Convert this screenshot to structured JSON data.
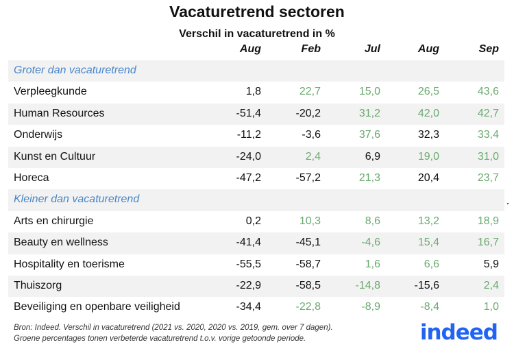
{
  "chart_data": {
    "type": "table",
    "title": "Vacaturetrend sectoren",
    "subtitle": "Verschil in vacaturetrend in %",
    "columns": [
      "Aug",
      "Feb",
      "Jul",
      "Aug",
      "Sep"
    ],
    "groups": [
      {
        "name": "Groter dan vacaturetrend",
        "rows": [
          {
            "label": "Verpleegkunde",
            "values": [
              "1,8",
              "22,7",
              "15,0",
              "26,5",
              "43,6"
            ],
            "green": [
              false,
              true,
              true,
              true,
              true
            ]
          },
          {
            "label": "Human Resources",
            "values": [
              "-51,4",
              "-20,2",
              "31,2",
              "42,0",
              "42,7"
            ],
            "green": [
              false,
              false,
              true,
              true,
              true
            ]
          },
          {
            "label": "Onderwijs",
            "values": [
              "-11,2",
              "-3,6",
              "37,6",
              "32,3",
              "33,4"
            ],
            "green": [
              false,
              false,
              true,
              false,
              true
            ]
          },
          {
            "label": "Kunst en Cultuur",
            "values": [
              "-24,0",
              "2,4",
              "6,9",
              "19,0",
              "31,0"
            ],
            "green": [
              false,
              true,
              false,
              true,
              true
            ]
          },
          {
            "label": "Horeca",
            "values": [
              "-47,2",
              "-57,2",
              "21,3",
              "20,4",
              "23,7"
            ],
            "green": [
              false,
              false,
              true,
              false,
              true
            ]
          }
        ]
      },
      {
        "name": "Kleiner dan vacaturetrend",
        "rows": [
          {
            "label": "Arts en chirurgie",
            "values": [
              "0,2",
              "10,3",
              "8,6",
              "13,2",
              "18,9"
            ],
            "green": [
              false,
              true,
              true,
              true,
              true
            ]
          },
          {
            "label": "Beauty en wellness",
            "values": [
              "-41,4",
              "-45,1",
              "-4,6",
              "15,4",
              "16,7"
            ],
            "green": [
              false,
              false,
              true,
              true,
              true
            ]
          },
          {
            "label": "Hospitality en toerisme",
            "values": [
              "-55,5",
              "-58,7",
              "1,6",
              "6,6",
              "5,9"
            ],
            "green": [
              false,
              false,
              true,
              true,
              false
            ]
          },
          {
            "label": "Thuiszorg",
            "values": [
              "-22,9",
              "-58,5",
              "-14,8",
              "-15,6",
              "2,4"
            ],
            "green": [
              false,
              false,
              true,
              false,
              true
            ]
          },
          {
            "label": "Beveiliging en openbare veiligheid",
            "values": [
              "-34,4",
              "-22,8",
              "-8,9",
              "-8,4",
              "1,0"
            ],
            "green": [
              false,
              true,
              true,
              true,
              true
            ]
          }
        ]
      }
    ],
    "colors": {
      "positive_change": "#6aaa6e",
      "group_label": "#4a86c8",
      "text": "#111111"
    }
  },
  "footer": {
    "line1": "Bron: Indeed. Verschil in vacaturetrend (2021 vs. 2020, 2020 vs. 2019, gem. over 7 dagen).",
    "line2": "Groene percentages tonen verbeterde vacaturetrend t.o.v. vorige getoonde periode."
  },
  "logo_text": "indeed"
}
